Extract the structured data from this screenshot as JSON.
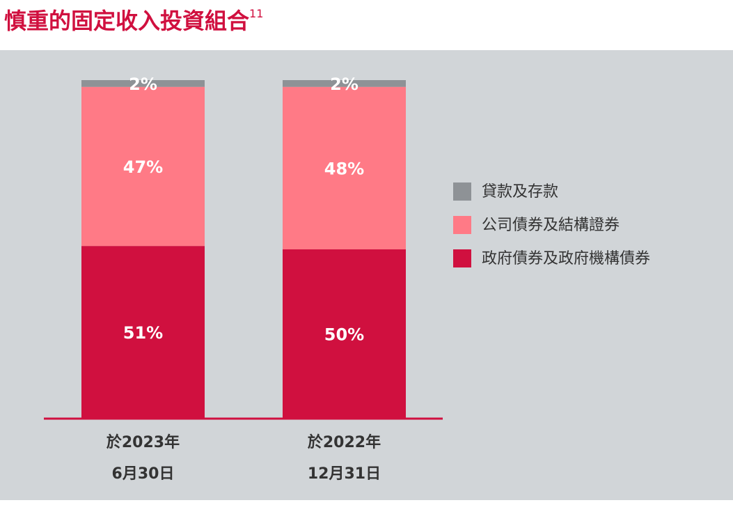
{
  "chart_data": {
    "type": "stacked-bar",
    "title": "慎重的固定收入投資組合",
    "title_superscript": "11",
    "categories": [
      [
        "於2023年",
        "6月30日"
      ],
      [
        "於2022年",
        "12月31日"
      ]
    ],
    "series": [
      {
        "name": "政府債券及政府機構債券",
        "color": "#d0103f",
        "values": [
          51,
          50
        ],
        "value_labels": [
          "51%",
          "50%"
        ]
      },
      {
        "name": "公司債券及結構證券",
        "color": "#ff7a86",
        "values": [
          47,
          48
        ],
        "value_labels": [
          "47%",
          "48%"
        ]
      },
      {
        "name": "貸款及存款",
        "color": "#8e9296",
        "values": [
          2,
          2
        ],
        "value_labels": [
          "2%",
          "2%"
        ]
      }
    ],
    "ylim": [
      0,
      100
    ],
    "legend": "right"
  }
}
